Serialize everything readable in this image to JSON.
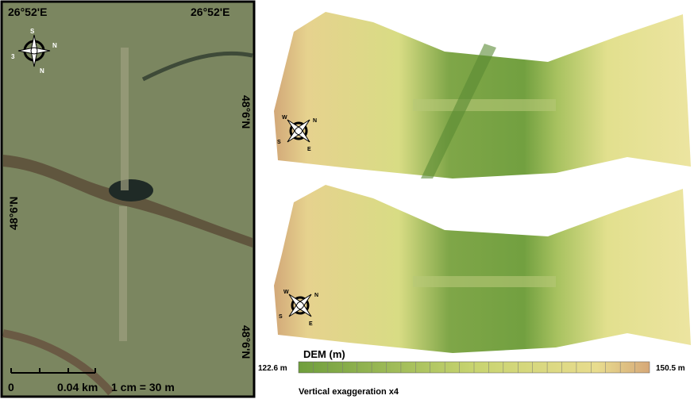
{
  "aerial": {
    "lon_left": "26°52'E",
    "lon_right": "26°52'E",
    "lat_right_upper": "48°6'N",
    "lat_left": "48°6'N",
    "lat_right_lower": "48°6'N",
    "compass": {
      "top": "S",
      "right": "N",
      "left": "3",
      "bottom": "N"
    },
    "scale": {
      "zero": "0",
      "distance": "0.04 km",
      "ratio": "1 cm = 30 m"
    }
  },
  "dem_top": {
    "compass": {
      "upper_left": "W",
      "upper_right": "N",
      "lower_left": "S",
      "lower_right": "E"
    }
  },
  "dem_bottom": {
    "compass": {
      "upper_left": "W",
      "upper_right": "N",
      "lower_left": "S",
      "lower_right": "E"
    }
  },
  "legend": {
    "title": "DEM (m)",
    "min": "122.6 m",
    "max": "150.5 m",
    "note": "Vertical exaggeration x4"
  }
}
